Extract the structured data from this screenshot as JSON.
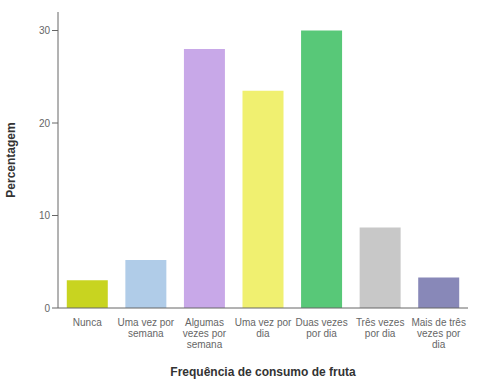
{
  "chart_data": {
    "type": "bar",
    "categories": [
      "Nunca",
      "Uma vez por\nsemana",
      "Algumas\nvezes por\nsemana",
      "Uma vez por\ndia",
      "Duas vezes\npor dia",
      "Três vezes\npor dia",
      "Mais de três\nvezes por\ndia"
    ],
    "values": [
      3.0,
      5.2,
      28.0,
      23.5,
      30.0,
      8.7,
      3.3
    ],
    "colors": [
      "#c8d420",
      "#b0cce8",
      "#c8a8e8",
      "#f0f070",
      "#58c878",
      "#c8c8c8",
      "#8888b8"
    ],
    "xlabel": "Frequência de consumo de fruta",
    "ylabel": "Percentagem",
    "ylim": [
      0,
      32
    ],
    "yticks": [
      0,
      10,
      20,
      30
    ],
    "grid": false
  }
}
